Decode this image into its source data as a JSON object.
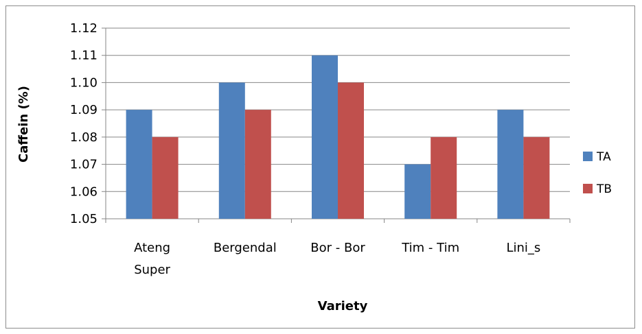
{
  "chart_data": {
    "type": "bar",
    "title": "",
    "xlabel": "Variety",
    "ylabel": "Caffein (%)",
    "categories": [
      [
        "Ateng",
        "Super"
      ],
      [
        "Bergendal"
      ],
      [
        "Bor - Bor"
      ],
      [
        "Tim - Tim"
      ],
      [
        "Lini_s"
      ]
    ],
    "series": [
      {
        "name": "TA",
        "color": "#4f81bd",
        "values": [
          1.09,
          1.1,
          1.11,
          1.07,
          1.09
        ]
      },
      {
        "name": "TB",
        "color": "#c0504d",
        "values": [
          1.08,
          1.09,
          1.1,
          1.08,
          1.08
        ]
      }
    ],
    "ylim": [
      1.05,
      1.12
    ],
    "yticks": [
      "1.05",
      "1.06",
      "1.07",
      "1.08",
      "1.09",
      "1.10",
      "1.11",
      "1.12"
    ],
    "grid": true,
    "legend": "right"
  }
}
